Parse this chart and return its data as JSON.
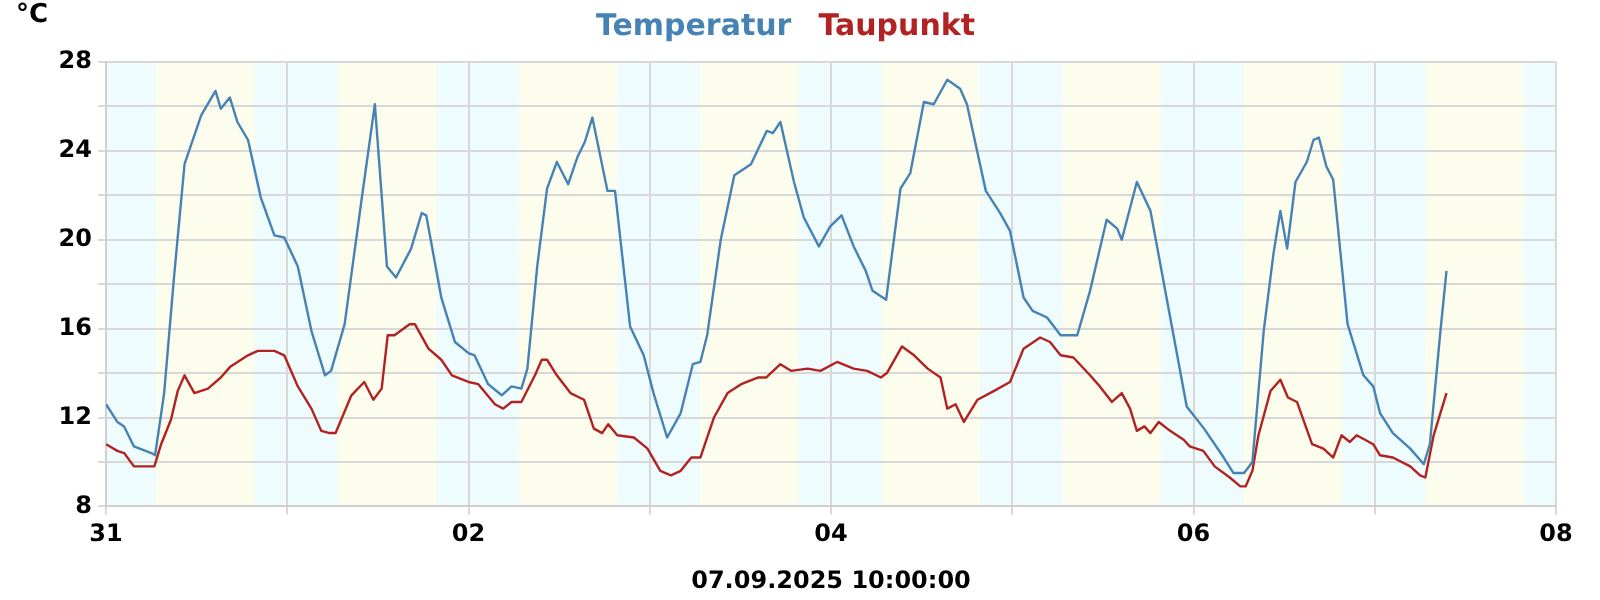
{
  "chart_data": {
    "type": "line",
    "xlabel": "07.09.2025 10:00:00",
    "ylabel": "°C",
    "legend": "top",
    "grid": true,
    "marker": "none",
    "line_style": "solid",
    "xlim": [
      "2025-08-31",
      "2025-09-08"
    ],
    "xticks": [
      {
        "value": "2025-08-31",
        "label": "31"
      },
      {
        "value": "2025-09-01",
        "label": null
      },
      {
        "value": "2025-09-02",
        "label": "02"
      },
      {
        "value": "2025-09-03",
        "label": null
      },
      {
        "value": "2025-09-04",
        "label": "04"
      },
      {
        "value": "2025-09-05",
        "label": null
      },
      {
        "value": "2025-09-06",
        "label": "06"
      },
      {
        "value": "2025-09-07",
        "label": null
      },
      {
        "value": "2025-09-08",
        "label": "08"
      }
    ],
    "ylim": [
      8,
      28
    ],
    "yticks": [
      8,
      {
        "value": 10,
        "label": null
      },
      12,
      {
        "value": 14,
        "label": null
      },
      16,
      {
        "value": 18,
        "label": null
      },
      20,
      {
        "value": 22,
        "label": null
      },
      24,
      {
        "value": 26,
        "label": null
      },
      28
    ],
    "bands": [
      {
        "axis": "x",
        "from": "2025-08-31T00:00",
        "to": "2025-08-31T06:42",
        "color": "#eefcfd"
      },
      {
        "axis": "x",
        "from": "2025-08-31T06:42",
        "to": "2025-08-31T19:42",
        "color": "#fdfdee"
      },
      {
        "axis": "x",
        "from": "2025-08-31T19:42",
        "to": "2025-09-01T06:42",
        "color": "#eefcfd"
      },
      {
        "axis": "x",
        "from": "2025-09-01T06:42",
        "to": "2025-09-01T19:42",
        "color": "#fdfdee"
      },
      {
        "axis": "x",
        "from": "2025-09-01T19:42",
        "to": "2025-09-02T06:42",
        "color": "#eefcfd"
      },
      {
        "axis": "x",
        "from": "2025-09-02T06:42",
        "to": "2025-09-02T19:42",
        "color": "#fdfdee"
      },
      {
        "axis": "x",
        "from": "2025-09-02T19:42",
        "to": "2025-09-03T06:42",
        "color": "#eefcfd"
      },
      {
        "axis": "x",
        "from": "2025-09-03T06:42",
        "to": "2025-09-03T19:42",
        "color": "#fdfdee"
      },
      {
        "axis": "x",
        "from": "2025-09-03T19:42",
        "to": "2025-09-04T06:42",
        "color": "#eefcfd"
      },
      {
        "axis": "x",
        "from": "2025-09-04T06:42",
        "to": "2025-09-04T19:42",
        "color": "#fdfdee"
      },
      {
        "axis": "x",
        "from": "2025-09-04T19:42",
        "to": "2025-09-05T06:42",
        "color": "#eefcfd"
      },
      {
        "axis": "x",
        "from": "2025-09-05T06:42",
        "to": "2025-09-05T19:42",
        "color": "#fdfdee"
      },
      {
        "axis": "x",
        "from": "2025-09-05T19:42",
        "to": "2025-09-06T06:42",
        "color": "#eefcfd"
      },
      {
        "axis": "x",
        "from": "2025-09-06T06:42",
        "to": "2025-09-06T19:42",
        "color": "#fdfdee"
      },
      {
        "axis": "x",
        "from": "2025-09-06T19:42",
        "to": "2025-09-07T06:42",
        "color": "#eefcfd"
      },
      {
        "axis": "x",
        "from": "2025-09-07T06:42",
        "to": "2025-09-07T19:42",
        "color": "#fdfdee"
      },
      {
        "axis": "x",
        "from": "2025-09-07T19:42",
        "to": "2025-09-08T00:00",
        "color": "#eefcfd"
      }
    ],
    "series": [
      {
        "name": "Temperatur",
        "color": "#4682b4",
        "x": [
          "2025-08-31T00:00",
          "2025-08-31T01:30",
          "2025-08-31T02:24",
          "2025-08-31T03:42",
          "2025-08-31T06:00",
          "2025-08-31T06:30",
          "2025-08-31T07:42",
          "2025-08-31T09:00",
          "2025-08-31T10:24",
          "2025-08-31T12:36",
          "2025-08-31T14:30",
          "2025-08-31T15:12",
          "2025-08-31T16:24",
          "2025-08-31T17:24",
          "2025-08-31T18:48",
          "2025-08-31T20:30",
          "2025-08-31T22:18",
          "2025-08-31T23:36",
          "2025-09-01T01:24",
          "2025-09-01T03:12",
          "2025-09-01T05:00",
          "2025-09-01T05:48",
          "2025-09-01T07:36",
          "2025-09-01T09:48",
          "2025-09-01T11:36",
          "2025-09-01T13:12",
          "2025-09-01T14:24",
          "2025-09-01T16:24",
          "2025-09-01T17:48",
          "2025-09-01T18:24",
          "2025-09-01T20:24",
          "2025-09-01T22:12",
          "2025-09-02T00:00",
          "2025-09-02T00:48",
          "2025-09-02T02:36",
          "2025-09-02T04:24",
          "2025-09-02T05:42",
          "2025-09-02T07:00",
          "2025-09-02T07:48",
          "2025-09-02T09:06",
          "2025-09-02T10:24",
          "2025-09-02T11:42",
          "2025-09-02T13:12",
          "2025-09-02T14:24",
          "2025-09-02T15:24",
          "2025-09-02T16:24",
          "2025-09-02T18:24",
          "2025-09-02T19:24",
          "2025-09-02T21:24",
          "2025-09-02T23:12",
          "2025-09-03T00:30",
          "2025-09-03T02:18",
          "2025-09-03T04:06",
          "2025-09-03T05:42",
          "2025-09-03T06:42",
          "2025-09-03T07:36",
          "2025-09-03T09:24",
          "2025-09-03T11:12",
          "2025-09-03T13:24",
          "2025-09-03T15:30",
          "2025-09-03T16:18",
          "2025-09-03T17:18",
          "2025-09-03T19:06",
          "2025-09-03T20:24",
          "2025-09-03T22:24",
          "2025-09-03T23:54",
          "2025-09-04T01:24",
          "2025-09-04T03:00",
          "2025-09-04T04:36",
          "2025-09-04T05:30",
          "2025-09-04T07:18",
          "2025-09-04T09:12",
          "2025-09-04T10:30",
          "2025-09-04T12:18",
          "2025-09-04T13:36",
          "2025-09-04T15:24",
          "2025-09-04T17:06",
          "2025-09-04T18:00",
          "2025-09-04T20:30",
          "2025-09-04T22:24",
          "2025-09-04T23:42",
          "2025-09-05T01:30",
          "2025-09-05T02:42",
          "2025-09-05T04:36",
          "2025-09-05T06:24",
          "2025-09-05T08:36",
          "2025-09-05T10:18",
          "2025-09-05T12:30",
          "2025-09-05T13:54",
          "2025-09-05T14:30",
          "2025-09-05T16:30",
          "2025-09-05T18:18",
          "2025-09-05T20:06",
          "2025-09-05T23:06",
          "2025-09-06T01:24",
          "2025-09-06T04:00",
          "2025-09-06T05:18",
          "2025-09-06T06:42",
          "2025-09-06T07:48",
          "2025-09-06T09:18",
          "2025-09-06T10:36",
          "2025-09-06T11:30",
          "2025-09-06T12:24",
          "2025-09-06T13:30",
          "2025-09-06T15:00",
          "2025-09-06T15:54",
          "2025-09-06T16:36",
          "2025-09-06T17:36",
          "2025-09-06T18:30",
          "2025-09-06T20:24",
          "2025-09-06T22:30",
          "2025-09-06T23:48",
          "2025-09-07T00:42",
          "2025-09-07T02:24",
          "2025-09-07T04:42",
          "2025-09-07T06:30",
          "2025-09-07T07:18",
          "2025-09-07T08:42",
          "2025-09-07T09:30"
        ],
        "values": [
          12.6,
          11.8,
          11.6,
          10.7,
          10.4,
          10.3,
          13.1,
          18.3,
          23.4,
          25.6,
          26.7,
          25.9,
          26.4,
          25.3,
          24.5,
          21.9,
          20.2,
          20.1,
          18.8,
          15.9,
          13.9,
          14.1,
          16.2,
          21.7,
          26.1,
          18.8,
          18.3,
          19.6,
          21.2,
          21.1,
          17.4,
          15.4,
          14.9,
          14.8,
          13.5,
          13.0,
          13.4,
          13.3,
          14.2,
          18.8,
          22.3,
          23.5,
          22.5,
          23.7,
          24.4,
          25.5,
          22.2,
          22.2,
          16.1,
          14.8,
          13.1,
          11.1,
          12.2,
          14.4,
          14.5,
          15.7,
          20.0,
          22.9,
          23.4,
          24.9,
          24.8,
          25.3,
          22.6,
          21.0,
          19.7,
          20.6,
          21.1,
          19.7,
          18.6,
          17.7,
          17.3,
          22.3,
          23.0,
          26.2,
          26.1,
          27.2,
          26.8,
          26.1,
          22.2,
          21.2,
          20.4,
          17.4,
          16.8,
          16.5,
          15.7,
          15.7,
          17.7,
          20.9,
          20.5,
          20.0,
          22.6,
          21.3,
          18.0,
          12.5,
          11.5,
          10.2,
          9.5,
          9.5,
          10.0,
          15.9,
          19.4,
          21.3,
          19.6,
          22.6,
          23.5,
          24.5,
          24.6,
          23.3,
          22.7,
          16.2,
          13.9,
          13.4,
          12.2,
          11.3,
          10.6,
          9.9,
          10.8,
          15.9,
          18.6
        ]
      },
      {
        "name": "Taupunkt",
        "color": "#b22222",
        "x": [
          "2025-08-31T00:00",
          "2025-08-31T01:30",
          "2025-08-31T02:24",
          "2025-08-31T03:42",
          "2025-08-31T05:30",
          "2025-08-31T06:24",
          "2025-08-31T07:18",
          "2025-08-31T08:36",
          "2025-08-31T09:30",
          "2025-08-31T10:24",
          "2025-08-31T11:42",
          "2025-08-31T13:30",
          "2025-08-31T15:12",
          "2025-08-31T16:30",
          "2025-08-31T18:48",
          "2025-08-31T20:06",
          "2025-08-31T22:18",
          "2025-08-31T23:36",
          "2025-09-01T01:24",
          "2025-09-01T03:12",
          "2025-09-01T04:30",
          "2025-09-01T05:36",
          "2025-09-01T06:24",
          "2025-09-01T08:30",
          "2025-09-01T10:12",
          "2025-09-01T11:24",
          "2025-09-01T12:30",
          "2025-09-01T13:18",
          "2025-09-01T14:12",
          "2025-09-01T16:12",
          "2025-09-01T16:54",
          "2025-09-01T18:42",
          "2025-09-01T20:24",
          "2025-09-01T21:48",
          "2025-09-02T00:00",
          "2025-09-02T01:18",
          "2025-09-02T03:30",
          "2025-09-02T04:36",
          "2025-09-02T05:42",
          "2025-09-02T07:00",
          "2025-09-02T08:48",
          "2025-09-02T09:42",
          "2025-09-02T10:24",
          "2025-09-02T11:42",
          "2025-09-02T13:30",
          "2025-09-02T15:18",
          "2025-09-02T16:36",
          "2025-09-02T17:42",
          "2025-09-02T18:30",
          "2025-09-02T19:42",
          "2025-09-02T21:54",
          "2025-09-02T23:42",
          "2025-09-03T01:24",
          "2025-09-03T02:48",
          "2025-09-03T04:06",
          "2025-09-03T05:30",
          "2025-09-03T06:42",
          "2025-09-03T08:30",
          "2025-09-03T10:18",
          "2025-09-03T12:06",
          "2025-09-03T14:18",
          "2025-09-03T15:24",
          "2025-09-03T17:18",
          "2025-09-03T18:42",
          "2025-09-03T20:54",
          "2025-09-03T22:36",
          "2025-09-04T00:48",
          "2025-09-04T03:00",
          "2025-09-04T04:48",
          "2025-09-04T06:36",
          "2025-09-04T07:24",
          "2025-09-04T09:24",
          "2025-09-04T11:00",
          "2025-09-04T12:48",
          "2025-09-04T14:30",
          "2025-09-04T15:24",
          "2025-09-04T16:30",
          "2025-09-04T17:36",
          "2025-09-04T19:24",
          "2025-09-04T21:36",
          "2025-09-04T23:42",
          "2025-09-05T01:30",
          "2025-09-05T03:42",
          "2025-09-05T05:00",
          "2025-09-05T06:24",
          "2025-09-05T08:06",
          "2025-09-05T10:18",
          "2025-09-05T11:36",
          "2025-09-05T13:12",
          "2025-09-05T14:30",
          "2025-09-05T15:36",
          "2025-09-05T16:30",
          "2025-09-05T17:30",
          "2025-09-05T18:18",
          "2025-09-05T19:24",
          "2025-09-05T20:54",
          "2025-09-05T22:42",
          "2025-09-05T23:30",
          "2025-09-06T01:18",
          "2025-09-06T02:48",
          "2025-09-06T04:48",
          "2025-09-06T06:12",
          "2025-09-06T06:54",
          "2025-09-06T07:48",
          "2025-09-06T08:36",
          "2025-09-06T10:12",
          "2025-09-06T11:30",
          "2025-09-06T12:30",
          "2025-09-06T13:42",
          "2025-09-06T15:42",
          "2025-09-06T17:12",
          "2025-09-06T18:30",
          "2025-09-06T19:36",
          "2025-09-06T20:42",
          "2025-09-06T21:36",
          "2025-09-06T23:48",
          "2025-09-07T00:42",
          "2025-09-07T02:24",
          "2025-09-07T04:42",
          "2025-09-07T06:00",
          "2025-09-07T06:42",
          "2025-09-07T07:48",
          "2025-09-07T09:30"
        ],
        "values": [
          10.8,
          10.5,
          10.4,
          9.8,
          9.8,
          9.8,
          10.8,
          11.9,
          13.2,
          13.9,
          13.1,
          13.3,
          13.8,
          14.3,
          14.8,
          15.0,
          15.0,
          14.8,
          13.4,
          12.4,
          11.4,
          11.3,
          11.3,
          13.0,
          13.6,
          12.8,
          13.3,
          15.7,
          15.7,
          16.2,
          16.2,
          15.1,
          14.6,
          13.9,
          13.6,
          13.5,
          12.6,
          12.4,
          12.7,
          12.7,
          13.9,
          14.6,
          14.6,
          13.9,
          13.1,
          12.8,
          11.5,
          11.3,
          11.7,
          11.2,
          11.1,
          10.6,
          9.6,
          9.4,
          9.6,
          10.2,
          10.2,
          12.0,
          13.1,
          13.5,
          13.8,
          13.8,
          14.4,
          14.1,
          14.2,
          14.1,
          14.5,
          14.2,
          14.1,
          13.8,
          14.0,
          15.2,
          14.8,
          14.2,
          13.8,
          12.4,
          12.6,
          11.8,
          12.8,
          13.2,
          13.6,
          15.1,
          15.6,
          15.4,
          14.8,
          14.7,
          13.9,
          13.4,
          12.7,
          13.1,
          12.4,
          11.4,
          11.6,
          11.3,
          11.8,
          11.4,
          11.0,
          10.7,
          10.5,
          9.8,
          9.3,
          8.9,
          8.9,
          9.6,
          11.2,
          13.2,
          13.7,
          12.9,
          12.7,
          10.8,
          10.6,
          10.2,
          11.2,
          10.9,
          11.2,
          10.8,
          10.3,
          10.2,
          9.8,
          9.4,
          9.3,
          11.2,
          13.1
        ]
      }
    ]
  }
}
